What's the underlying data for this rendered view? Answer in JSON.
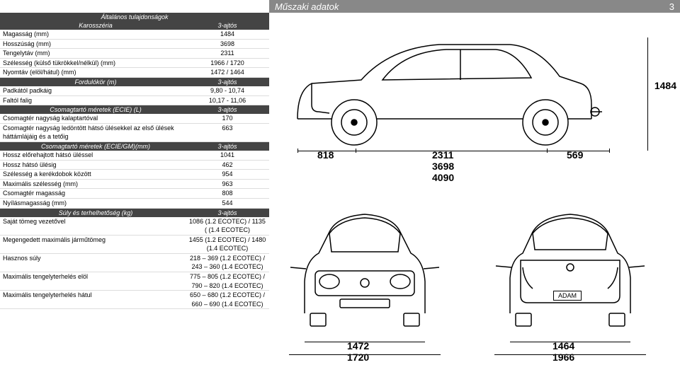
{
  "header": {
    "title": "Műszaki adatok",
    "page": "3"
  },
  "sections": {
    "general": {
      "title": "Általános tulajdonságok",
      "karosszeria": {
        "label": "Karosszéria",
        "col": "3-ajtós"
      },
      "rows": [
        {
          "label": "Magasság (mm)",
          "value": "1484"
        },
        {
          "label": "Hosszúság (mm)",
          "value": "3698"
        },
        {
          "label": "Tengelytáv (mm)",
          "value": "2311"
        },
        {
          "label": "Szélesség (külső tükrökkel/nélkül) (mm)",
          "value": "1966 / 1720"
        },
        {
          "label": "Nyomtáv (elöl/hátul) (mm)",
          "value": "1472 / 1464"
        }
      ]
    },
    "turning": {
      "label": "Fordulókör (m)",
      "col": "3-ajtós",
      "rows": [
        {
          "label": "Padkától padkáig",
          "value": "9,80 - 10,74"
        },
        {
          "label": "Faltól falig",
          "value": "10,17 - 11,06"
        }
      ]
    },
    "trunk_l": {
      "label": "Csomagtartó méretek (ECIE) (L)",
      "col": "3-ajtós",
      "rows": [
        {
          "label": "Csomagtér nagyság kalaptartóval",
          "value": "170"
        },
        {
          "label": "Csomagtér nagyság ledöntött hátsó ülésekkel az első ülések háttámlájáig és a tetőig",
          "value": "663"
        }
      ]
    },
    "trunk_mm": {
      "label": "Csomagtartó méretek (ECIE/GM)(mm)",
      "col": "3-ajtós",
      "rows": [
        {
          "label": "Hossz előrehajtott hátsó üléssel",
          "value": "1041"
        },
        {
          "label": "Hossz hátsó ülésig",
          "value": "462"
        },
        {
          "label": "Szélesség a kerékdobok között",
          "value": "954"
        },
        {
          "label": "Maximális szélesség (mm)",
          "value": "963"
        },
        {
          "label": "Csomagtér magasság",
          "value": "808"
        },
        {
          "label": "Nyílásmagasság (mm)",
          "value": "544"
        }
      ]
    },
    "weight": {
      "label": "Súly és terhelhetőség (kg)",
      "col": "3-ajtós",
      "rows": [
        {
          "label": "Saját tömeg vezetővel",
          "value": "1086 (1.2 ECOTEC) / 1135 ( (1.4 ECOTEC)"
        },
        {
          "label": "Megengedett maximális járműtömeg",
          "value": "1455 (1.2 ECOTEC) / 1480 (1.4 ECOTEC)"
        },
        {
          "label": "Hasznos súly",
          "value": "218 – 369 (1.2 ECOTEC) / 243 – 360 (1.4 ECOTEC)"
        },
        {
          "label": "Maximális tengelyterhelés elöl",
          "value": "775 – 805 (1.2 ECOTEC) / 790 – 820 (1.4 ECOTEC)"
        },
        {
          "label": "Maximális tengelyterhelés hátul",
          "value": "650 – 680 (1.2 ECOTEC) / 660 – 690 (1.4 ECOTEC)"
        }
      ]
    }
  },
  "diagram": {
    "side": {
      "front_overhang": "818",
      "wheelbase": "2311",
      "rear_overhang": "569",
      "length": "3698",
      "total": "4090",
      "height": "1484"
    },
    "front": {
      "track": "1472",
      "width": "1720"
    },
    "rear": {
      "track": "1464",
      "width": "1966",
      "plate": "ADAM"
    },
    "colors": {
      "line": "#000000",
      "bg": "#ffffff",
      "header_bg": "#444444",
      "page_header_bg": "#888888"
    }
  }
}
